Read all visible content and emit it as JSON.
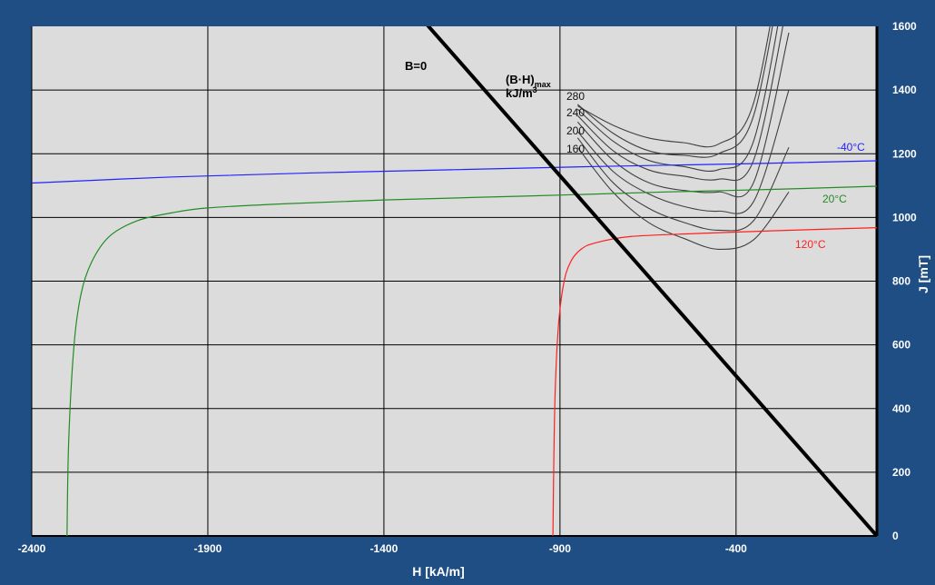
{
  "chart_data": {
    "type": "line",
    "title": "",
    "xlabel": "H [kA/m]",
    "ylabel": "J  [mT]",
    "xlim": [
      -2400,
      0
    ],
    "ylim": [
      0,
      1600
    ],
    "x_ticks": [
      "-2400",
      "-1900",
      "-1400",
      "-900",
      "-400"
    ],
    "y_ticks": [
      "0",
      "200",
      "400",
      "600",
      "800",
      "1000",
      "1200",
      "1400",
      "1600"
    ],
    "grid": true,
    "colors": {
      "background": "#1f4e85",
      "plot": "#dcdcdc",
      "grid": "#000000",
      "series_m40": "#2323ff",
      "series_20": "#238c23",
      "series_120": "#ff2020",
      "b_zero": "#000000",
      "bh": "#404040"
    },
    "series": [
      {
        "name": "-40°C",
        "color": "#2323ff",
        "x": [
          -2400,
          -2000,
          -1600,
          -1200,
          -800,
          -400,
          0
        ],
        "y": [
          1108,
          1127,
          1140,
          1150,
          1160,
          1168,
          1178
        ]
      },
      {
        "name": "20°C",
        "color": "#238c23",
        "x": [
          -2300,
          -2295,
          -2280,
          -2260,
          -2230,
          -2180,
          -2100,
          -2000,
          -1900,
          -1700,
          -1400,
          -1000,
          -600,
          -300,
          0
        ],
        "y": [
          0,
          300,
          600,
          760,
          860,
          940,
          990,
          1015,
          1030,
          1042,
          1055,
          1067,
          1080,
          1088,
          1098
        ]
      },
      {
        "name": "120°C",
        "color": "#ff2020",
        "x": [
          -920,
          -915,
          -905,
          -890,
          -870,
          -840,
          -800,
          -700,
          -500,
          -300,
          0
        ],
        "y": [
          0,
          400,
          650,
          790,
          860,
          900,
          920,
          940,
          950,
          958,
          968
        ]
      }
    ],
    "b_zero_line": {
      "label": "B=0",
      "x": [
        -1290,
        0
      ],
      "y": [
        1621,
        0
      ]
    },
    "bh_max": {
      "title": "(B·H)",
      "title_sub": "max",
      "unit": "kJ/m",
      "unit_sup": "3",
      "labels": [
        "280",
        "240",
        "200",
        "160"
      ],
      "curves": [
        {
          "x": [
            -850,
            -750,
            -650,
            -550,
            -450,
            -350,
            -250
          ],
          "y": [
            1220,
            1080,
            985,
            935,
            900,
            930,
            1080
          ]
        },
        {
          "x": [
            -850,
            -750,
            -650,
            -550,
            -450,
            -350,
            -250
          ],
          "y": [
            1250,
            1110,
            1030,
            985,
            960,
            990,
            1220
          ]
        },
        {
          "x": [
            -850,
            -750,
            -650,
            -550,
            -450,
            -350,
            -250
          ],
          "y": [
            1270,
            1145,
            1075,
            1035,
            1020,
            1050,
            1400
          ]
        },
        {
          "x": [
            -850,
            -750,
            -650,
            -550,
            -450,
            -350,
            -250
          ],
          "y": [
            1300,
            1180,
            1110,
            1085,
            1080,
            1110,
            1580
          ]
        },
        {
          "x": [
            -850,
            -750,
            -650,
            -550,
            -450,
            -350,
            -250
          ],
          "y": [
            1320,
            1210,
            1150,
            1130,
            1120,
            1180,
            1700
          ]
        },
        {
          "x": [
            -850,
            -750,
            -650,
            -550,
            -450,
            -350,
            -250
          ],
          "y": [
            1340,
            1240,
            1180,
            1160,
            1150,
            1240,
            1800
          ]
        },
        {
          "x": [
            -850,
            -750,
            -650,
            -550,
            -450,
            -350,
            -250
          ],
          "y": [
            1355,
            1265,
            1210,
            1195,
            1200,
            1320,
            1900
          ]
        },
        {
          "x": [
            -850,
            -750,
            -650,
            -550,
            -450,
            -350,
            -250
          ],
          "y": [
            1350,
            1290,
            1250,
            1235,
            1230,
            1360,
            1950
          ]
        }
      ]
    },
    "annotations": {
      "m40": "-40°C",
      "t20": "20°C",
      "t120": "120°C"
    }
  }
}
